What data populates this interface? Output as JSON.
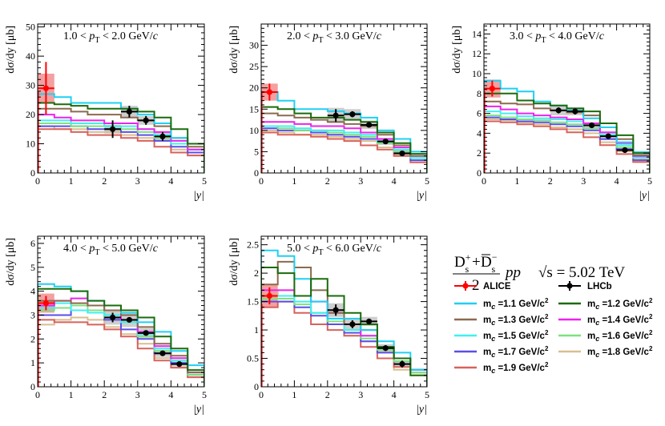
{
  "figure": {
    "ylabel": "dσ/dy [μb]",
    "xlabel": "|y|",
    "title_prefix": "1.0 <",
    "pt_label": "p",
    "pt_sub": "T"
  },
  "legend": {
    "title_num": "D",
    "title_den": "2",
    "title_system": "pp",
    "title_energy": "√s = 5.02 TeV",
    "title_full": "(D_s^+ + D̄_s^-)/2 pp √s = 5.02 TeV",
    "data_entries": [
      {
        "label": "ALICE",
        "color": "#ff0000"
      },
      {
        "label": "LHCb",
        "color": "#000000"
      }
    ],
    "model_entries": [
      {
        "label": "m_c =1.1 GeV/c²",
        "mass": "1.1",
        "color": "#1fd0f2"
      },
      {
        "label": "m_c =1.2 GeV/c²",
        "mass": "1.2",
        "color": "#1a6b0c"
      },
      {
        "label": "m_c =1.3 GeV/c²",
        "mass": "1.3",
        "color": "#8c6a4e"
      },
      {
        "label": "m_c =1.4 GeV/c²",
        "mass": "1.4",
        "color": "#ee22ee"
      },
      {
        "label": "m_c =1.5 GeV/c²",
        "mass": "1.5",
        "color": "#3ff0f0"
      },
      {
        "label": "m_c =1.6 GeV/c²",
        "mass": "1.6",
        "color": "#7fe07f"
      },
      {
        "label": "m_c =1.7 GeV/c²",
        "mass": "1.7",
        "color": "#5a4fe8"
      },
      {
        "label": "m_c =1.8 GeV/c²",
        "mass": "1.8",
        "color": "#d9be8f"
      },
      {
        "label": "m_c =1.9 GeV/c²",
        "mass": "1.9",
        "color": "#d7625c"
      }
    ]
  },
  "chart_data": [
    {
      "type": "histogram+errorbar",
      "title": "1.0 < p_T < 2.0 GeV/c",
      "pt_range": [
        "1.0",
        "2.0"
      ],
      "xlabel": "|y|",
      "ylabel": "dσ/dy [μb]",
      "xlim": [
        0,
        5
      ],
      "ylim": [
        0,
        51
      ],
      "xticks": [
        0,
        1,
        2,
        3,
        4,
        5
      ],
      "yticks": [
        0,
        10,
        20,
        30,
        40,
        50
      ],
      "bin_edges": [
        0,
        0.5,
        1,
        1.5,
        2,
        2.5,
        3,
        3.5,
        4,
        4.5,
        5
      ],
      "models": [
        {
          "mass": "1.1",
          "values": [
            27,
            26,
            24,
            24,
            24,
            22,
            20,
            17,
            12,
            10
          ]
        },
        {
          "mass": "1.2",
          "values": [
            24,
            23.5,
            23,
            22,
            22,
            22,
            21,
            19,
            15,
            10
          ]
        },
        {
          "mass": "1.3",
          "values": [
            22,
            22,
            21,
            20,
            20,
            19,
            18,
            16,
            12,
            9
          ]
        },
        {
          "mass": "1.4",
          "values": [
            20,
            19,
            18,
            18,
            17,
            17,
            15,
            14,
            11,
            8
          ]
        },
        {
          "mass": "1.5",
          "values": [
            18,
            18,
            17,
            17,
            16,
            16,
            15,
            13,
            10,
            8
          ]
        },
        {
          "mass": "1.6",
          "values": [
            17,
            17,
            16,
            16,
            16,
            15,
            14,
            12,
            10,
            8
          ]
        },
        {
          "mass": "1.7",
          "values": [
            16,
            16,
            16,
            15,
            15,
            14,
            13,
            11,
            9,
            7
          ]
        },
        {
          "mass": "1.8",
          "values": [
            16,
            15,
            15,
            14,
            14,
            13,
            12,
            11,
            8,
            6
          ]
        },
        {
          "mass": "1.9",
          "values": [
            15,
            15,
            14,
            13,
            13,
            12,
            11,
            9,
            7,
            6
          ]
        }
      ],
      "alice": [
        {
          "x": 0.25,
          "xerr": 0.25,
          "y": 29,
          "yerr": 9,
          "syst": 5
        }
      ],
      "lhcb": [
        {
          "x": 2.25,
          "xerr": 0.25,
          "y": 15,
          "yerr": 3,
          "syst": 1.5
        },
        {
          "x": 2.75,
          "xerr": 0.25,
          "y": 21,
          "yerr": 2,
          "syst": 2
        },
        {
          "x": 3.25,
          "xerr": 0.25,
          "y": 18,
          "yerr": 1.5,
          "syst": 1.5
        },
        {
          "x": 3.75,
          "xerr": 0.25,
          "y": 12.5,
          "yerr": 1.5,
          "syst": 1.5
        }
      ]
    },
    {
      "type": "histogram+errorbar",
      "title": "2.0 < p_T < 3.0 GeV/c",
      "pt_range": [
        "2.0",
        "3.0"
      ],
      "xlabel": "|y|",
      "ylabel": "dσ/dy [μb]",
      "xlim": [
        0,
        5
      ],
      "ylim": [
        0,
        35
      ],
      "xticks": [
        0,
        1,
        2,
        3,
        4,
        5
      ],
      "yticks": [
        0,
        5,
        10,
        15,
        20,
        25,
        30
      ],
      "bin_edges": [
        0,
        0.5,
        1,
        1.5,
        2,
        2.5,
        3,
        3.5,
        4,
        4.5,
        5
      ],
      "models": [
        {
          "mass": "1.1",
          "values": [
            19,
            17,
            15,
            15,
            14.5,
            14,
            13,
            10,
            8,
            5
          ]
        },
        {
          "mass": "1.2",
          "values": [
            15.5,
            15,
            14,
            13,
            13,
            12.5,
            12,
            9.5,
            7,
            4.5
          ]
        },
        {
          "mass": "1.3",
          "values": [
            14,
            13.5,
            13,
            12.5,
            12,
            11.5,
            11,
            9,
            6.5,
            4
          ]
        },
        {
          "mass": "1.4",
          "values": [
            12,
            12,
            11.5,
            11,
            11,
            10.5,
            9.5,
            8,
            6,
            4
          ]
        },
        {
          "mass": "1.5",
          "values": [
            11,
            11,
            10.5,
            10,
            10,
            9.5,
            9,
            7.5,
            5.5,
            3.5
          ]
        },
        {
          "mass": "1.6",
          "values": [
            11,
            10.5,
            10,
            10,
            9.5,
            9,
            8.5,
            7,
            5,
            3.5
          ]
        },
        {
          "mass": "1.7",
          "values": [
            10.5,
            10,
            10,
            9.5,
            9,
            8.5,
            8,
            7,
            5,
            3
          ]
        },
        {
          "mass": "1.8",
          "values": [
            10,
            9.5,
            9,
            9,
            8.5,
            8,
            7.5,
            6,
            4.5,
            3
          ]
        },
        {
          "mass": "1.9",
          "values": [
            9.5,
            9,
            9,
            8.5,
            8,
            7.5,
            6.5,
            5.5,
            4,
            2.5
          ]
        }
      ],
      "alice": [
        {
          "x": 0.25,
          "xerr": 0.25,
          "y": 19,
          "yerr": 2,
          "syst": 2
        }
      ],
      "lhcb": [
        {
          "x": 2.25,
          "xerr": 0.25,
          "y": 13.5,
          "yerr": 1.5,
          "syst": 1.8
        },
        {
          "x": 2.75,
          "xerr": 0.25,
          "y": 13.8,
          "yerr": 0.7,
          "syst": 1.2
        },
        {
          "x": 3.25,
          "xerr": 0.25,
          "y": 11.3,
          "yerr": 0.6,
          "syst": 1
        },
        {
          "x": 3.75,
          "xerr": 0.25,
          "y": 7.4,
          "yerr": 0.5,
          "syst": 0.8
        },
        {
          "x": 4.25,
          "xerr": 0.25,
          "y": 4.6,
          "yerr": 0.6,
          "syst": 0.8
        }
      ]
    },
    {
      "type": "histogram+errorbar",
      "title": "3.0 < p_T < 4.0 GeV/c",
      "pt_range": [
        "3.0",
        "4.0"
      ],
      "xlabel": "|y|",
      "ylabel": "dσ/dy [μb]",
      "xlim": [
        0,
        5
      ],
      "ylim": [
        0,
        15
      ],
      "xticks": [
        0,
        1,
        2,
        3,
        4,
        5
      ],
      "yticks": [
        0,
        2,
        4,
        6,
        8,
        10,
        12,
        14
      ],
      "bin_edges": [
        0,
        0.5,
        1,
        1.5,
        2,
        2.5,
        3,
        3.5,
        4,
        4.5,
        5
      ],
      "models": [
        {
          "mass": "1.1",
          "values": [
            9.3,
            8.5,
            8.2,
            7.2,
            6.8,
            6.3,
            5.5,
            4.6,
            3.1,
            2.1
          ]
        },
        {
          "mass": "1.2",
          "values": [
            8,
            8,
            7.3,
            7,
            6.8,
            6.5,
            6.2,
            5,
            3.8,
            2
          ]
        },
        {
          "mass": "1.3",
          "values": [
            7.2,
            7,
            6.9,
            6.5,
            6.3,
            6.1,
            5.8,
            4.6,
            3.4,
            1.8
          ]
        },
        {
          "mass": "1.4",
          "values": [
            6.7,
            6.4,
            6,
            5.8,
            5.6,
            5.4,
            5,
            4.1,
            3,
            1.7
          ]
        },
        {
          "mass": "1.5",
          "values": [
            6.2,
            6,
            5.7,
            5.5,
            5.4,
            5.2,
            4.8,
            3.9,
            2.8,
            1.6
          ]
        },
        {
          "mass": "1.6",
          "values": [
            5.8,
            5.6,
            5.4,
            5.3,
            5.1,
            4.9,
            4.5,
            3.7,
            2.6,
            1.5
          ]
        },
        {
          "mass": "1.7",
          "values": [
            5.6,
            5.4,
            5.2,
            5.1,
            4.9,
            4.7,
            4.3,
            3.4,
            2.4,
            1.3
          ]
        },
        {
          "mass": "1.8",
          "values": [
            5.4,
            5.3,
            5.1,
            4.9,
            4.6,
            4.4,
            4,
            3.1,
            2.2,
            1.2
          ]
        },
        {
          "mass": "1.9",
          "values": [
            5.2,
            5.1,
            4.9,
            4.7,
            4.4,
            4.1,
            3.6,
            2.8,
            1.9,
            1.1
          ]
        }
      ],
      "alice": [
        {
          "x": 0.25,
          "xerr": 0.25,
          "y": 8.5,
          "yerr": 0.8,
          "syst": 0.9
        }
      ],
      "lhcb": [
        {
          "x": 2.25,
          "xerr": 0.25,
          "y": 6.3,
          "yerr": 0.3,
          "syst": 0.5
        },
        {
          "x": 2.75,
          "xerr": 0.25,
          "y": 6.2,
          "yerr": 0.3,
          "syst": 0.4
        },
        {
          "x": 3.25,
          "xerr": 0.25,
          "y": 4.8,
          "yerr": 0.2,
          "syst": 0.3
        },
        {
          "x": 3.75,
          "xerr": 0.25,
          "y": 3.7,
          "yerr": 0.2,
          "syst": 0.3
        },
        {
          "x": 4.25,
          "xerr": 0.25,
          "y": 2.3,
          "yerr": 0.2,
          "syst": 0.2
        }
      ]
    },
    {
      "type": "histogram+errorbar",
      "title": "4.0 < p_T < 5.0 GeV/c",
      "pt_range": [
        "4.0",
        "5.0"
      ],
      "xlabel": "|y|",
      "ylabel": "dσ/dy [μb]",
      "xlim": [
        0,
        5
      ],
      "ylim": [
        0,
        6.3
      ],
      "xticks": [
        0,
        1,
        2,
        3,
        4,
        5
      ],
      "yticks": [
        0,
        1,
        2,
        3,
        4,
        5,
        6
      ],
      "bin_edges": [
        0,
        0.5,
        1,
        1.5,
        2,
        2.5,
        3,
        3.5,
        4,
        4.5,
        5
      ],
      "models": [
        {
          "mass": "1.1",
          "values": [
            4.3,
            4.2,
            4,
            3.6,
            3.4,
            3.1,
            2.7,
            2.3,
            1.5,
            0.9
          ]
        },
        {
          "mass": "1.2",
          "values": [
            4.1,
            4.1,
            4,
            3.6,
            3.4,
            3.2,
            2.9,
            2.1,
            1.6,
            0.7
          ]
        },
        {
          "mass": "1.3",
          "values": [
            3.6,
            3.6,
            3.5,
            3.4,
            3.2,
            3,
            2.5,
            1.8,
            1.3,
            0.6
          ]
        },
        {
          "mass": "1.4",
          "values": [
            3.4,
            3.6,
            3.7,
            3.4,
            3.2,
            2.8,
            2.3,
            1.7,
            1.2,
            0.6
          ]
        },
        {
          "mass": "1.5",
          "values": [
            3.3,
            3.5,
            3.2,
            3.1,
            3,
            2.7,
            2.2,
            1.6,
            1.1,
            0.6
          ]
        },
        {
          "mass": "1.6",
          "values": [
            3.2,
            3.3,
            3.4,
            3.2,
            2.9,
            2.7,
            2.1,
            1.5,
            1.1,
            0.5
          ]
        },
        {
          "mass": "1.7",
          "values": [
            3,
            3,
            3.2,
            3.1,
            2.8,
            2.4,
            2,
            1.4,
            1,
            0.5
          ]
        },
        {
          "mass": "1.8",
          "values": [
            2.6,
            2.8,
            2.9,
            2.8,
            2.5,
            2.2,
            1.8,
            1.2,
            0.8,
            0.4
          ]
        },
        {
          "mass": "1.9",
          "values": [
            2.8,
            2.7,
            2.7,
            2.6,
            2.4,
            2.1,
            1.6,
            1.1,
            0.8,
            0.4
          ]
        }
      ],
      "alice": [
        {
          "x": 0.25,
          "xerr": 0.25,
          "y": 3.5,
          "yerr": 0.3,
          "syst": 0.4
        }
      ],
      "lhcb": [
        {
          "x": 2.25,
          "xerr": 0.25,
          "y": 2.9,
          "yerr": 0.2,
          "syst": 0.3
        },
        {
          "x": 2.75,
          "xerr": 0.25,
          "y": 2.8,
          "yerr": 0.1,
          "syst": 0.3
        },
        {
          "x": 3.25,
          "xerr": 0.25,
          "y": 2.25,
          "yerr": 0.1,
          "syst": 0.2
        },
        {
          "x": 3.75,
          "xerr": 0.25,
          "y": 1.4,
          "yerr": 0.1,
          "syst": 0.15
        },
        {
          "x": 4.25,
          "xerr": 0.25,
          "y": 0.95,
          "yerr": 0.1,
          "syst": 0.1
        }
      ]
    },
    {
      "type": "histogram+errorbar",
      "title": "5.0 < p_T < 6.0 GeV/c",
      "pt_range": [
        "5.0",
        "6.0"
      ],
      "xlabel": "|y|",
      "ylabel": "dσ/dy [μb]",
      "xlim": [
        0,
        5
      ],
      "ylim": [
        0,
        2.65
      ],
      "xticks": [
        0,
        1,
        2,
        3,
        4,
        5
      ],
      "yticks": [
        0,
        0.5,
        1,
        1.5,
        2,
        2.5
      ],
      "ytick_labels": [
        "0",
        "0.5",
        "1",
        "1.5",
        "2",
        "2.5"
      ],
      "bin_edges": [
        0,
        0.5,
        1,
        1.5,
        2,
        2.5,
        3,
        3.5,
        4,
        4.5,
        5
      ],
      "models": [
        {
          "mass": "1.1",
          "values": [
            2.4,
            2.3,
            1.9,
            1.5,
            1.2,
            1.2,
            1,
            0.8,
            0.6,
            0.3
          ]
        },
        {
          "mass": "1.2",
          "values": [
            2.1,
            2,
            1.6,
            1.9,
            1.6,
            1.3,
            1.1,
            0.7,
            0.5,
            0.2
          ]
        },
        {
          "mass": "1.3",
          "values": [
            1.8,
            2.2,
            2.1,
            1.7,
            1.3,
            1.1,
            1,
            0.7,
            0.5,
            0.3
          ]
        },
        {
          "mass": "1.4",
          "values": [
            1.7,
            1.7,
            1.6,
            1.5,
            1.3,
            1.1,
            0.9,
            0.7,
            0.5,
            0.3
          ]
        },
        {
          "mass": "1.5",
          "values": [
            1.6,
            1.6,
            1.5,
            1.3,
            1.2,
            1,
            0.9,
            0.7,
            0.5,
            0.3
          ]
        },
        {
          "mass": "1.6",
          "values": [
            1.55,
            1.55,
            1.45,
            1.3,
            1.15,
            1,
            0.85,
            0.65,
            0.45,
            0.25
          ]
        },
        {
          "mass": "1.7",
          "values": [
            1.5,
            1.5,
            1.4,
            1.25,
            1.1,
            0.95,
            0.8,
            0.6,
            0.45,
            0.3
          ]
        },
        {
          "mass": "1.8",
          "values": [
            1.7,
            1.6,
            1.5,
            1.3,
            1.1,
            0.9,
            0.8,
            0.6,
            0.3,
            0.2
          ]
        },
        {
          "mass": "1.9",
          "values": [
            1.4,
            1.5,
            1.3,
            1.1,
            1,
            0.9,
            0.7,
            0.5,
            0.35,
            0.25
          ]
        }
      ],
      "alice": [
        {
          "x": 0.25,
          "xerr": 0.25,
          "y": 1.6,
          "yerr": 0.15,
          "syst": 0.2
        }
      ],
      "lhcb": [
        {
          "x": 2.25,
          "xerr": 0.25,
          "y": 1.35,
          "yerr": 0.1,
          "syst": 0.12
        },
        {
          "x": 2.75,
          "xerr": 0.25,
          "y": 1.1,
          "yerr": 0.07,
          "syst": 0.1
        },
        {
          "x": 3.25,
          "xerr": 0.25,
          "y": 1.15,
          "yerr": 0.05,
          "syst": 0.08
        },
        {
          "x": 3.75,
          "xerr": 0.25,
          "y": 0.68,
          "yerr": 0.05,
          "syst": 0.07
        },
        {
          "x": 4.25,
          "xerr": 0.25,
          "y": 0.4,
          "yerr": 0.06,
          "syst": 0.06
        }
      ]
    }
  ]
}
